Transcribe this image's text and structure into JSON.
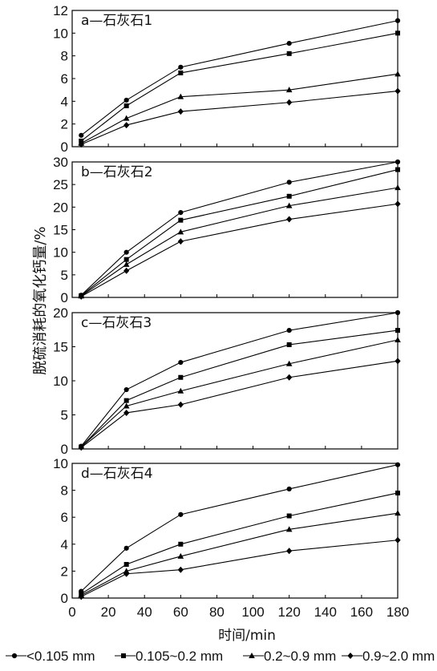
{
  "chart_data": {
    "type": "line",
    "ylabel": "脱硫消耗的氧化钙量/%",
    "xlabel": "时间/min",
    "xlim": [
      0,
      180
    ],
    "xticks": [
      0,
      20,
      40,
      60,
      80,
      100,
      120,
      140,
      160,
      180
    ],
    "x": [
      5,
      30,
      60,
      120,
      180
    ],
    "legend": [
      {
        "label": "<0.105 mm",
        "marker": "circle"
      },
      {
        "label": "0.105~0.2 mm",
        "marker": "square"
      },
      {
        "label": "0.2~0.9 mm",
        "marker": "triangle"
      },
      {
        "label": "0.9~2.0 mm",
        "marker": "diamond"
      }
    ],
    "panels": [
      {
        "title": "a—石灰石1",
        "ylim": [
          0,
          12
        ],
        "yticks": [
          0,
          2,
          4,
          6,
          8,
          10,
          12
        ],
        "series": [
          {
            "values": [
              1.0,
              4.1,
              7.0,
              9.1,
              11.1
            ]
          },
          {
            "values": [
              0.5,
              3.6,
              6.5,
              8.2,
              10.0
            ]
          },
          {
            "values": [
              0.3,
              2.5,
              4.4,
              5.0,
              6.4
            ]
          },
          {
            "values": [
              0.2,
              1.9,
              3.1,
              3.9,
              4.9
            ]
          }
        ]
      },
      {
        "title": "b—石灰石2",
        "ylim": [
          0,
          30
        ],
        "yticks": [
          0,
          5,
          10,
          15,
          20,
          25,
          30
        ],
        "series": [
          {
            "values": [
              0.5,
              10.0,
              18.8,
              25.5,
              30.0
            ]
          },
          {
            "values": [
              0.4,
              8.4,
              17.1,
              22.4,
              28.3
            ]
          },
          {
            "values": [
              0.3,
              7.3,
              14.5,
              20.3,
              24.3
            ]
          },
          {
            "values": [
              0.2,
              5.9,
              12.4,
              17.3,
              20.7
            ]
          }
        ]
      },
      {
        "title": "c—石灰石3",
        "ylim": [
          0,
          20
        ],
        "yticks": [
          0,
          5,
          10,
          15,
          20
        ],
        "series": [
          {
            "values": [
              0.4,
              8.7,
              12.7,
              17.4,
              20.0
            ]
          },
          {
            "values": [
              0.3,
              7.1,
              10.5,
              15.3,
              17.4
            ]
          },
          {
            "values": [
              0.3,
              6.3,
              8.5,
              12.5,
              16.0
            ]
          },
          {
            "values": [
              0.2,
              5.3,
              6.5,
              10.5,
              12.9
            ]
          }
        ]
      },
      {
        "title": "d—石灰石4",
        "ylim": [
          0,
          10
        ],
        "yticks": [
          0,
          2,
          4,
          6,
          8,
          10
        ],
        "series": [
          {
            "values": [
              0.5,
              3.7,
              6.2,
              8.1,
              9.9
            ]
          },
          {
            "values": [
              0.3,
              2.5,
              4.0,
              6.1,
              7.8
            ]
          },
          {
            "values": [
              0.2,
              2.0,
              3.1,
              5.1,
              6.3
            ]
          },
          {
            "values": [
              0.1,
              1.8,
              2.1,
              3.5,
              4.3
            ]
          }
        ]
      }
    ]
  }
}
